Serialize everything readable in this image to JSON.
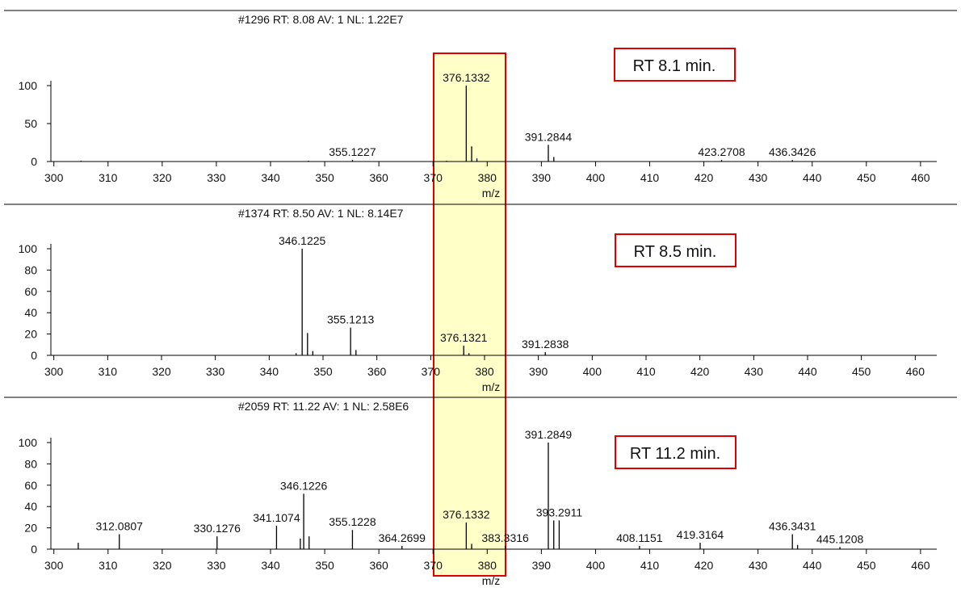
{
  "chart_data": [
    {
      "type": "bar",
      "header": "#1296  RT: 8.08  AV: 1  NL: 1.22E7",
      "x_label": "m/z",
      "annotation": "RT 8.1 min.",
      "xlim": [
        299,
        463
      ],
      "xticks": [
        300,
        310,
        320,
        330,
        340,
        350,
        360,
        370,
        380,
        390,
        400,
        410,
        420,
        430,
        440,
        450,
        460
      ],
      "ylim": [
        0,
        100
      ],
      "yticks": [
        0,
        50,
        100
      ],
      "color": "#000000",
      "series": [
        {
          "labels": true,
          "x": [
            376.1332,
            391.2844,
            355.1227,
            423.2708,
            436.3426
          ],
          "values": [
            100,
            22,
            2,
            2,
            2
          ]
        },
        {
          "labels": false,
          "x": [
            377.13,
            378.1,
            392.3,
            347,
            305,
            372.5
          ],
          "values": [
            20,
            4,
            6,
            1,
            1,
            1
          ]
        }
      ]
    },
    {
      "type": "bar",
      "header": "#1374  RT: 8.50  AV: 1  NL: 8.14E7",
      "x_label": "m/z",
      "annotation": "RT 8.5 min.",
      "xlim": [
        299,
        464
      ],
      "xticks": [
        300,
        310,
        320,
        330,
        340,
        350,
        360,
        370,
        380,
        390,
        400,
        410,
        420,
        430,
        440,
        450,
        460
      ],
      "ylim": [
        0,
        100
      ],
      "yticks": [
        0,
        20,
        40,
        60,
        80,
        100
      ],
      "color": "#000000",
      "series": [
        {
          "labels": true,
          "x": [
            346.1225,
            355.1213,
            376.1321,
            391.2838
          ],
          "values": [
            100,
            26,
            9,
            3
          ]
        },
        {
          "labels": false,
          "x": [
            347.12,
            348.1,
            356.12,
            345,
            377.1
          ],
          "values": [
            21,
            4,
            5,
            2,
            2
          ]
        }
      ]
    },
    {
      "type": "bar",
      "header": "#2059  RT: 11.22  AV: 1  NL: 2.58E6",
      "x_label": "m/z",
      "annotation": "RT 11.2 min.",
      "xlim": [
        299,
        463
      ],
      "xticks": [
        300,
        310,
        320,
        330,
        340,
        350,
        360,
        370,
        380,
        390,
        400,
        410,
        420,
        430,
        440,
        450,
        460
      ],
      "ylim": [
        0,
        100
      ],
      "yticks": [
        0,
        20,
        40,
        60,
        80,
        100
      ],
      "color": "#000000",
      "series": [
        {
          "labels": true,
          "x": [
            391.2849,
            393.2911,
            376.1332,
            346.1226,
            341.1074,
            355.1228,
            312.0807,
            330.1276,
            364.2699,
            383.3316,
            408.1151,
            419.3164,
            436.3431,
            445.1208
          ],
          "values": [
            100,
            27,
            25,
            52,
            22,
            18,
            14,
            12,
            3,
            3,
            3,
            6,
            14,
            2
          ]
        },
        {
          "labels": false,
          "x": [
            347.12,
            392.29,
            304.5,
            377.13,
            437.3,
            345.5
          ],
          "values": [
            12,
            27,
            6,
            5,
            4,
            10
          ]
        }
      ]
    }
  ]
}
